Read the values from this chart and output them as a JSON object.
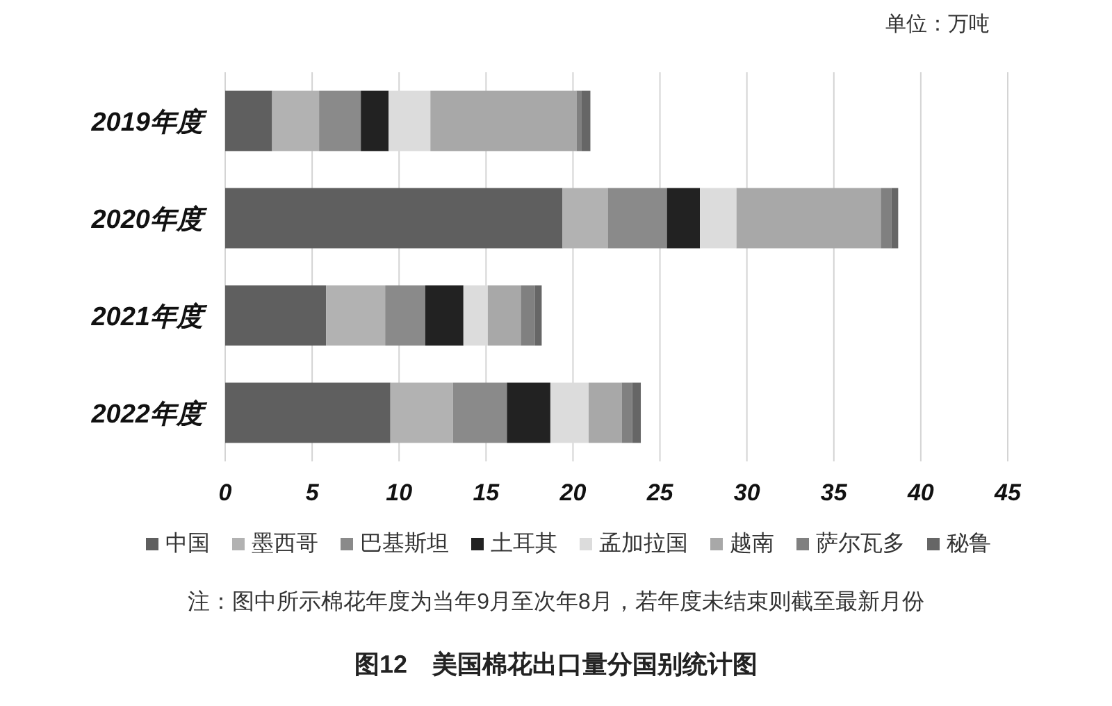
{
  "chart_data": {
    "type": "bar",
    "orientation": "horizontal",
    "stacked": true,
    "title": "图12　美国棉花出口量分国别统计图",
    "annotations": [
      "单位：万吨",
      "注：图中所示棉花年度为当年9月至次年8月，若年度未结束则截至最新月份"
    ],
    "categories": [
      "2019年度",
      "2020年度",
      "2021年度",
      "2022年度"
    ],
    "series": [
      {
        "name": "中国",
        "color": "#5f5f5f",
        "values": [
          2.7,
          19.4,
          5.8,
          9.5
        ]
      },
      {
        "name": "墨西哥",
        "color": "#b2b2b2",
        "values": [
          2.7,
          2.6,
          3.4,
          3.6
        ]
      },
      {
        "name": "巴基斯坦",
        "color": "#8a8a8a",
        "values": [
          2.4,
          3.4,
          2.3,
          3.1
        ]
      },
      {
        "name": "土耳其",
        "color": "#222222",
        "values": [
          1.6,
          1.9,
          2.2,
          2.5
        ]
      },
      {
        "name": "孟加拉国",
        "color": "#dcdcdc",
        "values": [
          2.4,
          2.1,
          1.4,
          2.2
        ]
      },
      {
        "name": "越南",
        "color": "#a8a8a8",
        "values": [
          8.4,
          8.3,
          1.9,
          1.9
        ]
      },
      {
        "name": "萨尔瓦多",
        "color": "#808080",
        "values": [
          0.3,
          0.6,
          0.8,
          0.6
        ]
      },
      {
        "name": "秘鲁",
        "color": "#666666",
        "values": [
          0.5,
          0.4,
          0.4,
          0.5
        ]
      }
    ],
    "xlim": [
      0,
      45
    ],
    "xticks": [
      0,
      5,
      10,
      15,
      20,
      25,
      30,
      35,
      40,
      45
    ],
    "grid": "x",
    "legend": "bottom"
  }
}
